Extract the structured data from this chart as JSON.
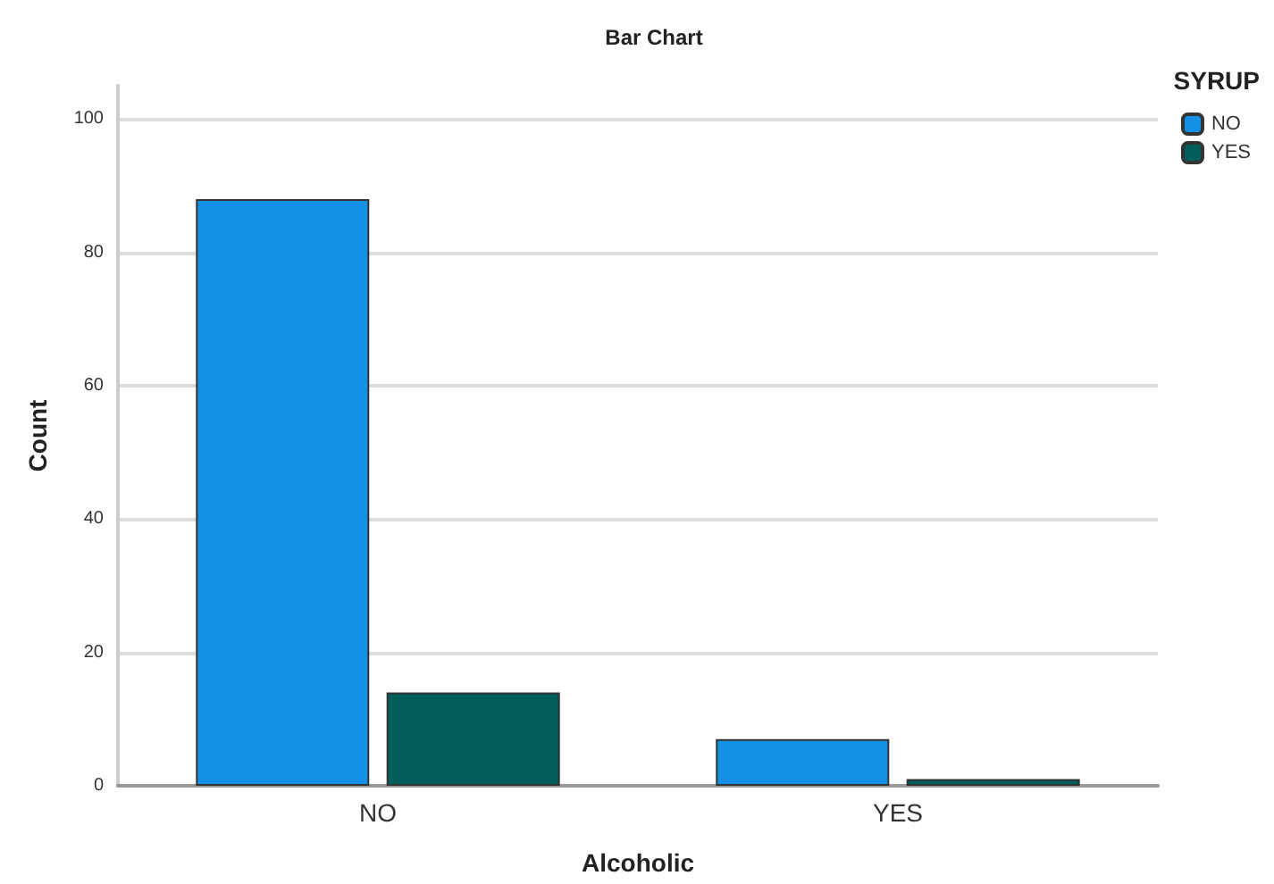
{
  "chart_data": {
    "type": "bar",
    "title": "Bar Chart",
    "xlabel": "Alcoholic",
    "ylabel": "Count",
    "legend_title": "SYRUP",
    "categories": [
      "NO",
      "YES"
    ],
    "series": [
      {
        "name": "NO",
        "color": "#1490e4",
        "values": [
          88,
          7
        ]
      },
      {
        "name": "YES",
        "color": "#025e5a",
        "values": [
          14,
          1
        ]
      }
    ],
    "ylim": [
      0,
      105
    ],
    "yticks": [
      0,
      20,
      40,
      60,
      80,
      100
    ],
    "grid": "y",
    "legend": "top right"
  }
}
